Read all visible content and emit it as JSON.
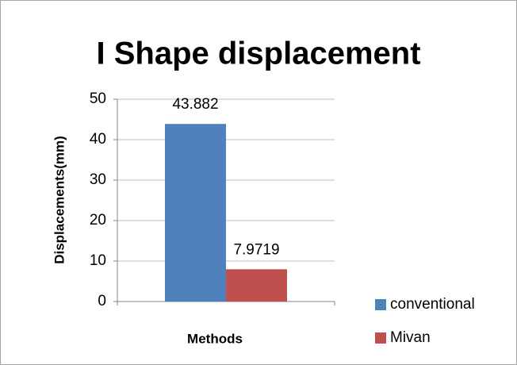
{
  "chart_data": {
    "type": "bar",
    "title": "I Shape displacement",
    "x_label": "Methods",
    "y_label": "Displacements(mm)",
    "categories": [
      null
    ],
    "series": [
      {
        "name": "conventional",
        "color": "#4f81bd",
        "values": [
          43.882
        ]
      },
      {
        "name": "Mivan",
        "color": "#c0504d",
        "values": [
          7.9719
        ]
      }
    ],
    "ylim": [
      0,
      50
    ],
    "yticks": [
      0,
      10,
      20,
      30,
      40,
      50
    ],
    "grid": true,
    "legend": "right"
  }
}
